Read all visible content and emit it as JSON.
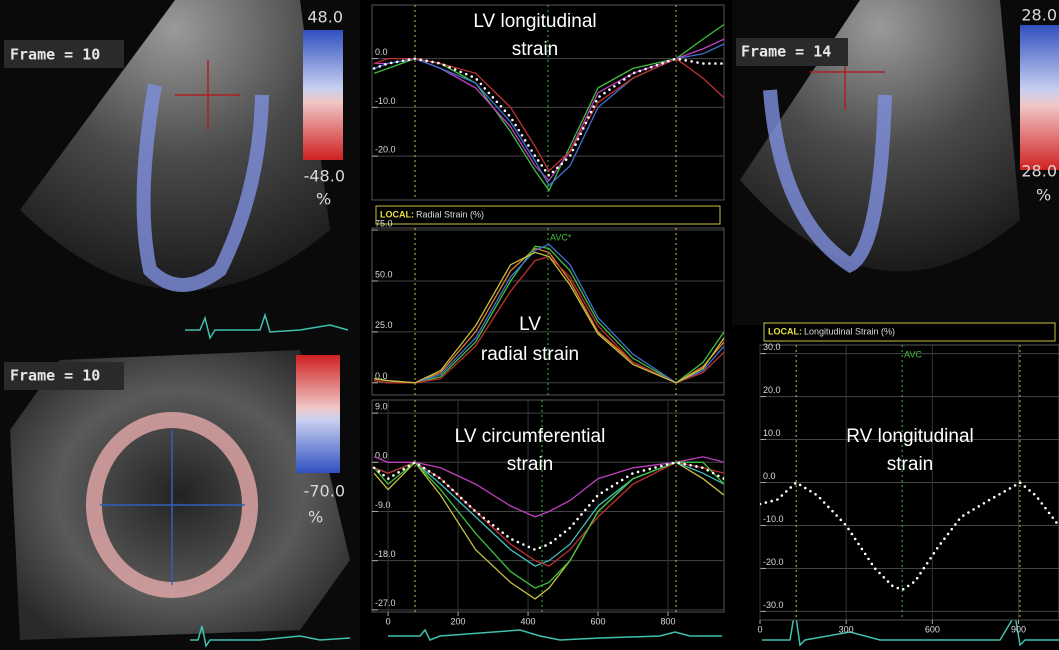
{
  "echo_panels": [
    {
      "frame": "Frame = 10",
      "scale_top": "48.0",
      "scale_bottom": "-48.0",
      "unit": "%"
    },
    {
      "frame": "Frame = 10",
      "scale_bottom": "-70.0",
      "unit": "%"
    },
    {
      "frame": "Frame = 14",
      "scale_top": "28.0",
      "scale_bottom": "28.0",
      "unit": "%"
    }
  ],
  "chart_data": [
    {
      "type": "line",
      "title": [
        "LV longitudinal",
        "strain"
      ],
      "x": [
        -40,
        0,
        77,
        150,
        250,
        350,
        420,
        460,
        520,
        600,
        700,
        823,
        900,
        960
      ],
      "series": [
        {
          "color": "#3fbf3f",
          "values": [
            -3,
            -2,
            0,
            -1,
            -5,
            -15,
            -23,
            -27,
            -18,
            -6,
            -2,
            0,
            4,
            7
          ]
        },
        {
          "color": "#c040c0",
          "values": [
            -1,
            -1,
            0,
            -2,
            -6,
            -14,
            -22,
            -25,
            -19,
            -7,
            -3,
            0,
            2,
            4
          ]
        },
        {
          "color": "#4070d0",
          "values": [
            -2,
            -1,
            0,
            -2,
            -5,
            -13,
            -21,
            -26,
            -22,
            -10,
            -4,
            0,
            1,
            3
          ]
        },
        {
          "color": "#c03030",
          "values": [
            -1,
            0,
            0,
            -1,
            -3,
            -10,
            -18,
            -23,
            -19,
            -9,
            -4,
            0,
            -4,
            -8
          ]
        },
        {
          "color": "#ffffff",
          "dotted": true,
          "values": [
            -2,
            -1,
            0,
            -1,
            -4,
            -12,
            -20,
            -24,
            -20,
            -8,
            -3,
            0,
            -1,
            -1
          ]
        }
      ],
      "xlim": [
        -46,
        960
      ],
      "ylim": [
        -29,
        11
      ],
      "yticks": [
        {
          "value": 0,
          "label": "0.0"
        },
        {
          "value": -10,
          "label": "-10.0"
        },
        {
          "value": -20,
          "label": "-20.0"
        }
      ],
      "grid": true,
      "event_lines": [
        {
          "x": 77,
          "color": "#c8c040"
        },
        {
          "x": 457,
          "color": "#3fbf3f"
        },
        {
          "x": 823,
          "color": "#c8c040"
        }
      ]
    },
    {
      "type": "line",
      "title": [
        "LV",
        "radial strain"
      ],
      "header_tag": "LOCAL:",
      "header": "Radial Strain (%)",
      "x": [
        -40,
        0,
        77,
        150,
        250,
        350,
        420,
        460,
        520,
        600,
        700,
        823,
        900,
        960
      ],
      "series": [
        {
          "color": "#e08030",
          "values": [
            2,
            1,
            0,
            5,
            25,
            55,
            66,
            64,
            50,
            25,
            10,
            0,
            8,
            20
          ]
        },
        {
          "color": "#3fbf3f",
          "values": [
            1,
            0,
            0,
            3,
            20,
            50,
            67,
            66,
            55,
            30,
            12,
            0,
            10,
            25
          ]
        },
        {
          "color": "#4070d0",
          "values": [
            2,
            1,
            0,
            4,
            22,
            52,
            65,
            68,
            58,
            32,
            14,
            0,
            6,
            18
          ]
        },
        {
          "color": "#c03030",
          "values": [
            1,
            0,
            0,
            2,
            18,
            45,
            60,
            62,
            52,
            28,
            10,
            0,
            5,
            15
          ]
        },
        {
          "color": "#c8c040",
          "values": [
            2,
            1,
            0,
            6,
            28,
            58,
            64,
            62,
            48,
            24,
            9,
            0,
            7,
            22
          ]
        }
      ],
      "xlim": [
        -46,
        960
      ],
      "ylim": [
        -6,
        76
      ],
      "yticks": [
        {
          "value": 0,
          "label": "0.0"
        },
        {
          "value": 25,
          "label": "25.0"
        },
        {
          "value": 50,
          "label": "50.0"
        },
        {
          "value": 75,
          "label": "75.0"
        }
      ],
      "grid": true,
      "event_lines": [
        {
          "x": 77,
          "color": "#c8c040"
        },
        {
          "x": 457,
          "color": "#3fbf3f",
          "label": "AVC*"
        },
        {
          "x": 823,
          "color": "#c8c040"
        }
      ]
    },
    {
      "type": "line",
      "title": [
        "LV circumferential",
        "strain"
      ],
      "x": [
        -40,
        0,
        77,
        150,
        250,
        350,
        420,
        460,
        520,
        600,
        700,
        823,
        900,
        960
      ],
      "series": [
        {
          "color": "#c040c0",
          "values": [
            1,
            0,
            0,
            -1,
            -4,
            -8,
            -10,
            -9,
            -7,
            -3,
            -1,
            0,
            1,
            0
          ]
        },
        {
          "color": "#c8c040",
          "values": [
            -2,
            -5,
            0,
            -6,
            -16,
            -22,
            -25,
            -23,
            -18,
            -9,
            -3,
            0,
            -3,
            -6
          ]
        },
        {
          "color": "#40c0c0",
          "values": [
            -1,
            -2,
            0,
            -4,
            -10,
            -16,
            -19,
            -18,
            -15,
            -8,
            -3,
            0,
            -2,
            -4
          ]
        },
        {
          "color": "#c03030",
          "values": [
            -1,
            -2,
            0,
            -3,
            -9,
            -15,
            -18,
            -19,
            -16,
            -10,
            -4,
            0,
            -1,
            -2
          ]
        },
        {
          "color": "#3fbf3f",
          "values": [
            -1,
            -4,
            0,
            -5,
            -13,
            -20,
            -23,
            -22,
            -18,
            -9,
            -3,
            0,
            0,
            -4
          ]
        },
        {
          "color": "#ffffff",
          "dotted": true,
          "values": [
            -1,
            -3,
            0,
            -3,
            -9,
            -14,
            -16,
            -15,
            -12,
            -6,
            -2,
            0,
            -1,
            -3
          ]
        }
      ],
      "xlim": [
        -46,
        960
      ],
      "ylim": [
        -27.4,
        11.4
      ],
      "yticks": [
        {
          "value": 9,
          "label": "9.0"
        },
        {
          "value": 0,
          "label": "0.0"
        },
        {
          "value": -9,
          "label": "-9.0"
        },
        {
          "value": -18,
          "label": "-18.0"
        },
        {
          "value": -27,
          "label": "-27.0"
        }
      ],
      "xticks": [
        0,
        200,
        400,
        600,
        800
      ],
      "grid": true,
      "event_lines": [
        {
          "x": 77,
          "color": "#c8c040"
        },
        {
          "x": 440,
          "color": "#3fbf3f"
        },
        {
          "x": 823,
          "color": "#c8c040"
        }
      ]
    },
    {
      "type": "line",
      "title": [
        "RV longitudinal",
        "strain"
      ],
      "header_tag": "LOCAL:",
      "header": "Longitudinal Strain (%)",
      "x": [
        0,
        60,
        126,
        200,
        300,
        400,
        460,
        495,
        540,
        620,
        700,
        800,
        880,
        905,
        960,
        1040
      ],
      "series": [
        {
          "color": "#ffffff",
          "dotted": true,
          "values": [
            -5,
            -4,
            0,
            -3,
            -10,
            -20,
            -24,
            -25,
            -23,
            -15,
            -8,
            -4,
            -1,
            0,
            -3,
            -10
          ]
        }
      ],
      "xlim": [
        0,
        1041
      ],
      "ylim": [
        -32,
        32
      ],
      "yticks": [
        {
          "value": 30,
          "label": "30.0"
        },
        {
          "value": 20,
          "label": "20.0"
        },
        {
          "value": 10,
          "label": "10.0"
        },
        {
          "value": 0,
          "label": "0.0"
        },
        {
          "value": -10,
          "label": "-10.0"
        },
        {
          "value": -20,
          "label": "-20.0"
        },
        {
          "value": -30,
          "label": "-30.0"
        }
      ],
      "xticks": [
        0,
        300,
        600,
        900
      ],
      "grid": true,
      "event_lines": [
        {
          "x": 126,
          "color": "#c8c040"
        },
        {
          "x": 495,
          "color": "#3fbf3f",
          "label": "AVC"
        },
        {
          "x": 905,
          "color": "#c8c040"
        }
      ]
    }
  ]
}
